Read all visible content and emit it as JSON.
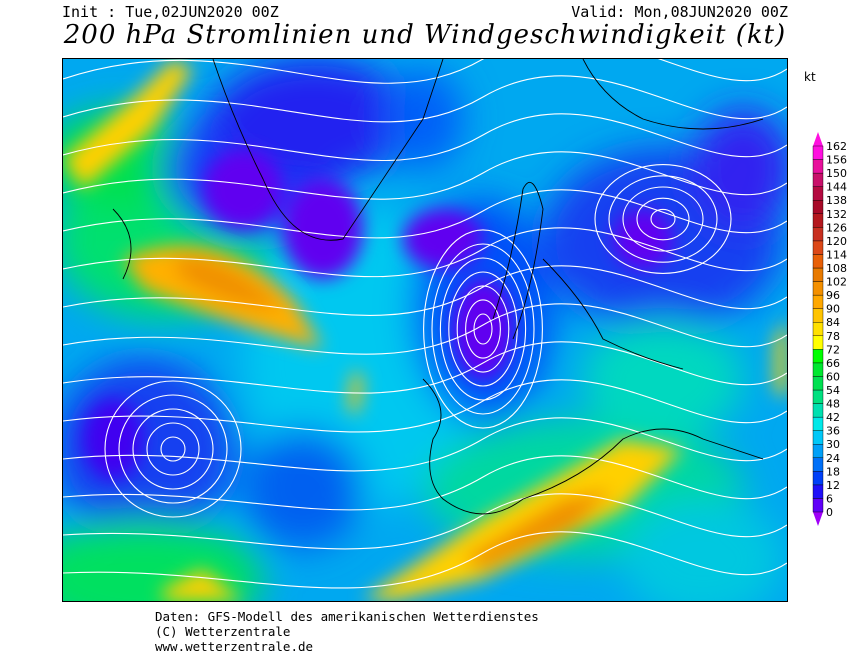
{
  "header": {
    "init": "Init : Tue,02JUN2020 00Z",
    "valid": "Valid: Mon,08JUN2020 00Z",
    "title": "200 hPa Stromlinien und Windgeschwindigkeit (kt)"
  },
  "legend": {
    "unit": "kt",
    "levels": [
      0,
      6,
      12,
      18,
      24,
      30,
      36,
      42,
      48,
      54,
      60,
      66,
      72,
      78,
      84,
      90,
      96,
      102,
      108,
      114,
      120,
      126,
      132,
      138,
      144,
      150,
      156,
      162
    ],
    "colors": [
      "#a000f8",
      "#6000f8",
      "#2010f8",
      "#0040f8",
      "#0070f8",
      "#00a0f8",
      "#00c8f8",
      "#00e8e8",
      "#00e0b0",
      "#00e080",
      "#00e050",
      "#00e830",
      "#00ff00",
      "#ffff00",
      "#ffe000",
      "#ffc400",
      "#ffa800",
      "#f49000",
      "#e87a00",
      "#e86008",
      "#dc4818",
      "#c83020",
      "#b4181e",
      "#a80a28",
      "#b40a40",
      "#c8106a",
      "#e8109c",
      "#ff0fdf"
    ]
  },
  "footer": {
    "line1": "Daten: GFS-Modell des amerikanischen Wetterdienstes",
    "line2": "(C) Wetterzentrale",
    "line3": "www.wetterzentrale.de"
  }
}
